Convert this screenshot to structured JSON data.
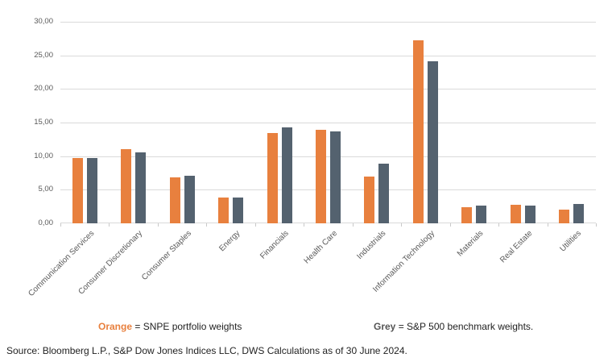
{
  "colors": {
    "orange": "#E8803E",
    "grey": "#54626F",
    "gridline": "#DADADA",
    "axis_text": "#595959",
    "legend_grey_term": "#555555"
  },
  "legend": {
    "orange_term": "Orange",
    "orange_desc": " = SNPE portfolio weights",
    "grey_term": "Grey",
    "grey_desc": " = S&P 500 benchmark weights."
  },
  "source": "Source: Bloomberg L.P., S&P Dow Jones Indices LLC, DWS Calculations as of 30 June 2024.",
  "chart_data": {
    "type": "bar",
    "categories": [
      "Communication Services",
      "Consumer Discretionary",
      "Consumer Staples",
      "Energy",
      "Financials",
      "Health Care",
      "Industrials",
      "Information Technology",
      "Materials",
      "Real Estate",
      "Utilities"
    ],
    "series": [
      {
        "name": "SNPE portfolio weights",
        "color_key": "orange",
        "values": [
          9.7,
          11.0,
          6.8,
          3.9,
          13.4,
          13.9,
          7.0,
          27.3,
          2.4,
          2.8,
          2.0
        ]
      },
      {
        "name": "S&P 500 benchmark weights",
        "color_key": "grey",
        "values": [
          9.7,
          10.6,
          7.1,
          3.8,
          14.3,
          13.7,
          8.9,
          24.1,
          2.7,
          2.7,
          2.9
        ]
      }
    ],
    "title": "",
    "xlabel": "",
    "ylabel": "",
    "ylim": [
      0,
      30
    ],
    "yticks": [
      0,
      5,
      10,
      15,
      20,
      25,
      30
    ],
    "ytick_labels": [
      "0,00",
      "5,00",
      "10,00",
      "15,00",
      "20,00",
      "25,00",
      "30,00"
    ],
    "grid": true,
    "legend_position": "bottom"
  }
}
